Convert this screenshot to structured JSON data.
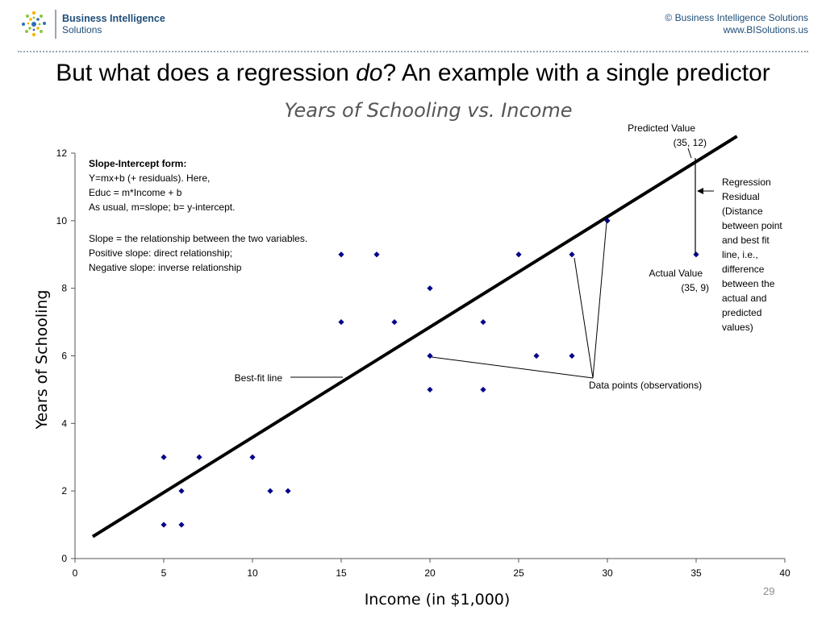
{
  "header": {
    "logo_name": "Business Intelligence",
    "logo_sub": "Solutions",
    "copyright_line1": "© Business Intelligence Solutions",
    "copyright_line2": "www.BISolutions.us"
  },
  "slide": {
    "title_before": "But what does a regression ",
    "title_italic": "do",
    "title_after": "? An example with a single predictor",
    "page_number": "29"
  },
  "chart_data": {
    "type": "scatter",
    "title": "Years of Schooling vs. Income",
    "xlabel": "Income (in $1,000)",
    "ylabel": "Years of Schooling",
    "xlim": [
      0,
      40
    ],
    "ylim": [
      0,
      12
    ],
    "xticks": [
      0,
      5,
      10,
      15,
      20,
      25,
      30,
      35,
      40
    ],
    "yticks": [
      0,
      2,
      4,
      6,
      8,
      10,
      12
    ],
    "grid": false,
    "legend": "none",
    "point_color": "#00008b",
    "line_color": "#000000",
    "series": [
      {
        "values": [
          {
            "x": 5,
            "y": 1
          },
          {
            "x": 5,
            "y": 3
          },
          {
            "x": 6,
            "y": 1
          },
          {
            "x": 6,
            "y": 2
          },
          {
            "x": 7,
            "y": 3
          },
          {
            "x": 10,
            "y": 3
          },
          {
            "x": 11,
            "y": 2
          },
          {
            "x": 12,
            "y": 2
          },
          {
            "x": 15,
            "y": 7
          },
          {
            "x": 15,
            "y": 9
          },
          {
            "x": 17,
            "y": 9
          },
          {
            "x": 18,
            "y": 7
          },
          {
            "x": 20,
            "y": 5
          },
          {
            "x": 20,
            "y": 6
          },
          {
            "x": 20,
            "y": 8
          },
          {
            "x": 23,
            "y": 5
          },
          {
            "x": 23,
            "y": 7
          },
          {
            "x": 25,
            "y": 9
          },
          {
            "x": 26,
            "y": 6
          },
          {
            "x": 28,
            "y": 6
          },
          {
            "x": 28,
            "y": 9
          },
          {
            "x": 30,
            "y": 10
          },
          {
            "x": 35,
            "y": 9
          }
        ]
      }
    ],
    "best_fit_line": {
      "x1": 1,
      "y1": 0.65,
      "x2": 37.3,
      "y2": 12.5
    },
    "annotations": {
      "slope_intercept": {
        "title": "Slope-Intercept form:",
        "lines": [
          "Y=mx+b (+ residuals). Here,",
          "Educ = m*Income + b",
          "As usual, m=slope; b= y-intercept.",
          "",
          "Slope = the relationship between the two variables.",
          "Positive slope: direct relationship;",
          "Negative slope: inverse relationship"
        ]
      },
      "predicted_value": {
        "label": "Predicted Value",
        "coords": "(35, 12)"
      },
      "actual_value": {
        "label": "Actual Value",
        "coords": "(35, 9)"
      },
      "regression_residual": {
        "lines": [
          "Regression",
          "Residual",
          "(Distance",
          "between point",
          "and best fit",
          "line, i.e.,",
          "difference",
          "between the",
          "actual and",
          "predicted",
          "values)"
        ]
      },
      "best_fit_label": "Best-fit line",
      "data_points_label": "Data points (observations)"
    }
  }
}
